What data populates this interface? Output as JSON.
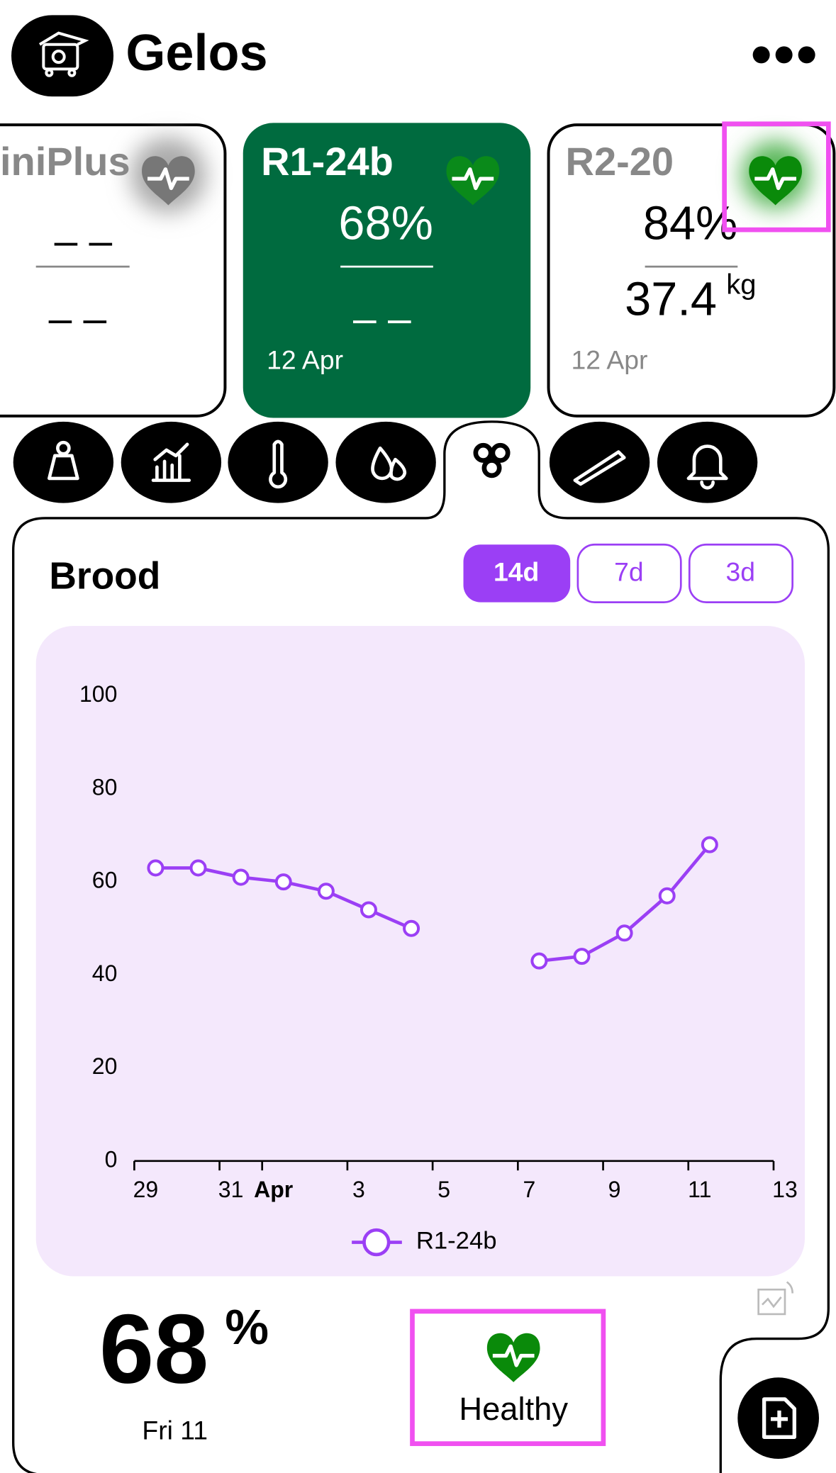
{
  "header": {
    "title": "Gelos"
  },
  "cards": [
    {
      "name": "iniPlus",
      "top": "– –",
      "bottom": "– –"
    },
    {
      "name": "R1-24b",
      "top": "68%",
      "bottom": "– –",
      "date": "12 Apr"
    },
    {
      "name": "R2-20",
      "top": "84%",
      "bottom": "37.4",
      "unit": "kg",
      "date": "12 Apr"
    }
  ],
  "panel": {
    "title": "Brood",
    "ranges": [
      "14d",
      "7d",
      "3d"
    ]
  },
  "chart_data": {
    "type": "line",
    "x": [
      0.5,
      1.5,
      2.5,
      3.5,
      4.5,
      5.5,
      6.5,
      7.5,
      8.5,
      9.5,
      10.5,
      11.5,
      12.5,
      13.5
    ],
    "series": [
      {
        "name": "R1-24b",
        "color": "#9b3ff5",
        "values": [
          63,
          63,
          61,
          60,
          58,
          54,
          50,
          null,
          null,
          43,
          44,
          49,
          57,
          68
        ]
      }
    ],
    "xlim": [
      0,
      15
    ],
    "xticks": [
      {
        "value": 0,
        "label": "29"
      },
      {
        "value": 2,
        "label": "31"
      },
      {
        "value": 3,
        "label": "Apr"
      },
      {
        "value": 5,
        "label": "3"
      },
      {
        "value": 7,
        "label": "5"
      },
      {
        "value": 9,
        "label": "7"
      },
      {
        "value": 11,
        "label": "9"
      },
      {
        "value": 13,
        "label": "11"
      },
      {
        "value": 15,
        "label": "13"
      }
    ],
    "ylim": [
      0,
      100
    ],
    "yticks": [
      0,
      20,
      40,
      60,
      80,
      100
    ],
    "grid": false
  },
  "summary": {
    "value": "68",
    "unit": "%",
    "day": "Fri 11",
    "status": "Healthy"
  }
}
